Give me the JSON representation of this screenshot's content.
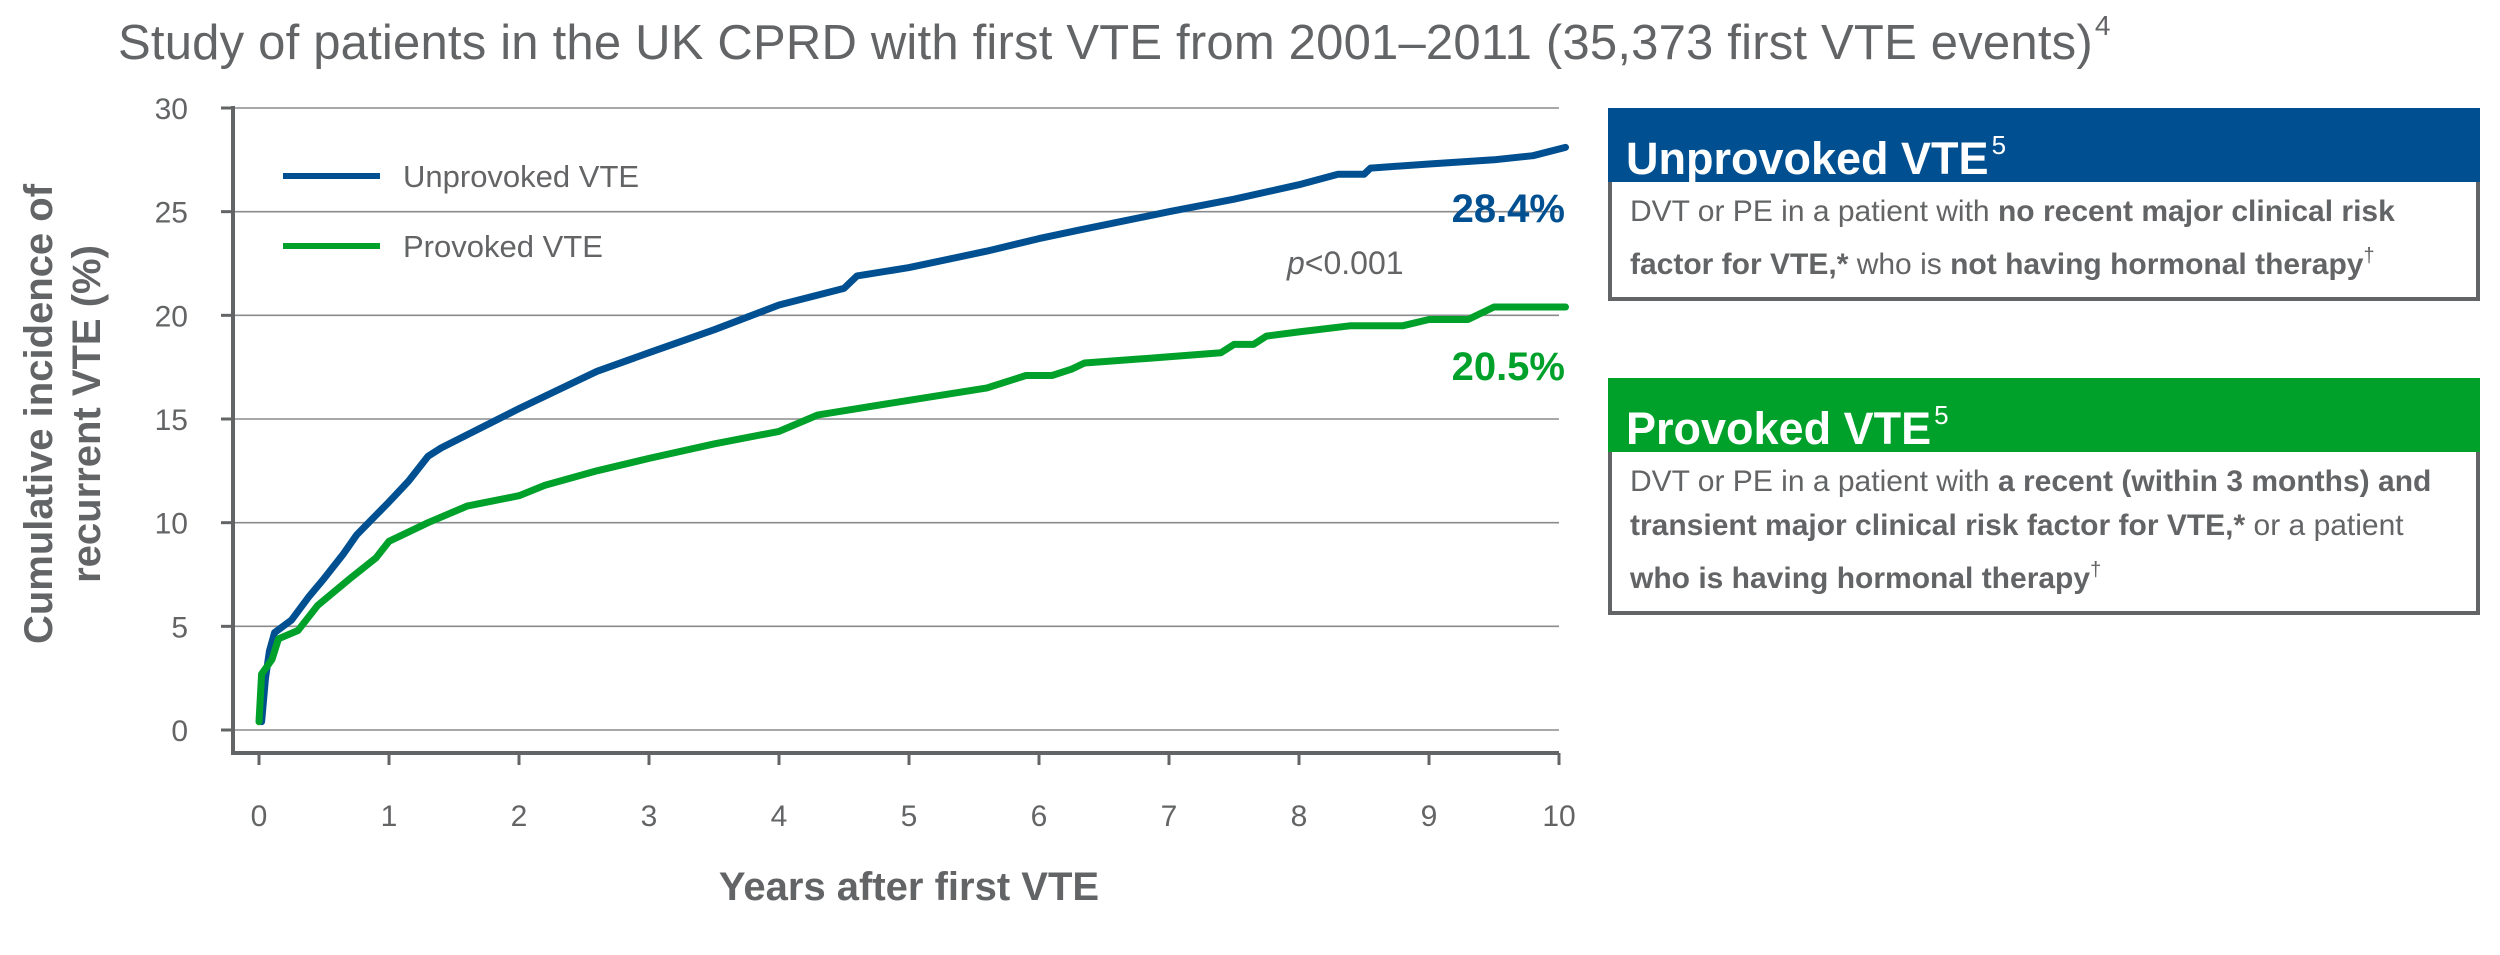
{
  "title": {
    "text": "Study of patients in the UK CPRD with first VTE from 2001–2011 (35,373 first VTE events)",
    "ref": "4"
  },
  "colors": {
    "unprovoked": "#005091",
    "provoked": "#00A12A",
    "axis": "#636466",
    "grid": "#8a8b8d"
  },
  "chart_data": {
    "type": "line",
    "xlabel": "Years after first VTE",
    "ylabel_line1": "Cumulative incidence of",
    "ylabel_line2": "recurrent VTE (%)",
    "xlim": [
      0,
      10
    ],
    "ylim": [
      0,
      30
    ],
    "xticks": [
      0,
      1,
      2,
      3,
      4,
      5,
      6,
      7,
      8,
      9,
      10
    ],
    "yticks": [
      0,
      5,
      10,
      15,
      20,
      25,
      30
    ],
    "grid": "horizontal",
    "legend_position": "top-left",
    "series": [
      {
        "name": "Unprovoked VTE",
        "color_key": "unprovoked",
        "end_label": "28.4%",
        "points": [
          [
            0.02,
            0.4
          ],
          [
            0.05,
            2.5
          ],
          [
            0.08,
            3.8
          ],
          [
            0.12,
            4.7
          ],
          [
            0.25,
            5.3
          ],
          [
            0.38,
            6.4
          ],
          [
            0.5,
            7.3
          ],
          [
            0.65,
            8.5
          ],
          [
            0.75,
            9.4
          ],
          [
            1.0,
            11.0
          ],
          [
            1.15,
            12.0
          ],
          [
            1.3,
            13.2
          ],
          [
            1.4,
            13.6
          ],
          [
            2.0,
            15.5
          ],
          [
            2.6,
            17.3
          ],
          [
            3.0,
            18.2
          ],
          [
            3.5,
            19.3
          ],
          [
            4.0,
            20.5
          ],
          [
            4.5,
            21.3
          ],
          [
            4.6,
            21.9
          ],
          [
            5.0,
            22.3
          ],
          [
            5.6,
            23.1
          ],
          [
            6.0,
            23.7
          ],
          [
            6.3,
            24.1
          ],
          [
            7.0,
            25.0
          ],
          [
            7.5,
            25.6
          ],
          [
            8.0,
            26.3
          ],
          [
            8.3,
            26.8
          ],
          [
            8.5,
            26.8
          ],
          [
            8.55,
            27.1
          ],
          [
            9.0,
            27.3
          ],
          [
            9.5,
            27.5
          ],
          [
            9.8,
            27.7
          ],
          [
            10.05,
            28.1
          ]
        ]
      },
      {
        "name": "Provoked VTE",
        "color_key": "provoked",
        "end_label": "20.5%",
        "points": [
          [
            0.0,
            0.4
          ],
          [
            0.02,
            2.7
          ],
          [
            0.1,
            3.4
          ],
          [
            0.15,
            4.4
          ],
          [
            0.3,
            4.8
          ],
          [
            0.45,
            6.0
          ],
          [
            0.7,
            7.3
          ],
          [
            0.9,
            8.3
          ],
          [
            1.0,
            9.1
          ],
          [
            1.3,
            10.0
          ],
          [
            1.6,
            10.8
          ],
          [
            2.0,
            11.3
          ],
          [
            2.2,
            11.8
          ],
          [
            2.6,
            12.5
          ],
          [
            3.0,
            13.1
          ],
          [
            3.5,
            13.8
          ],
          [
            4.0,
            14.4
          ],
          [
            4.3,
            15.2
          ],
          [
            5.0,
            15.9
          ],
          [
            5.6,
            16.5
          ],
          [
            5.9,
            17.1
          ],
          [
            6.1,
            17.1
          ],
          [
            6.25,
            17.4
          ],
          [
            6.35,
            17.7
          ],
          [
            7.0,
            18.0
          ],
          [
            7.4,
            18.2
          ],
          [
            7.5,
            18.6
          ],
          [
            7.65,
            18.6
          ],
          [
            7.75,
            19.0
          ],
          [
            8.0,
            19.2
          ],
          [
            8.4,
            19.5
          ],
          [
            8.8,
            19.5
          ],
          [
            9.0,
            19.8
          ],
          [
            9.3,
            19.8
          ],
          [
            9.5,
            20.4
          ],
          [
            10.05,
            20.4
          ]
        ]
      }
    ],
    "annotation": {
      "p_italic": "p",
      "text": "<0.001"
    }
  },
  "boxes": [
    {
      "heading": "Unprovoked VTE",
      "ref": "5",
      "color_key": "unprovoked",
      "body": [
        {
          "t": "DVT or PE in a patient with ",
          "b": false
        },
        {
          "t": "no recent major clinical risk factor for VTE,*",
          "b": true
        },
        {
          "t": " who is ",
          "b": false
        },
        {
          "t": "not having hormonal therapy",
          "b": true
        },
        {
          "t": "†",
          "b": false,
          "sup": true
        }
      ]
    },
    {
      "heading": "Provoked VTE",
      "ref": "5",
      "color_key": "provoked",
      "body": [
        {
          "t": "DVT or PE in a patient with ",
          "b": false
        },
        {
          "t": "a recent (within 3 months) and transient major clinical risk factor for VTE,*",
          "b": true
        },
        {
          "t": " or a patient ",
          "b": false
        },
        {
          "t": "who is having hormonal therapy",
          "b": true
        },
        {
          "t": "†",
          "b": false,
          "sup": true
        }
      ]
    }
  ]
}
